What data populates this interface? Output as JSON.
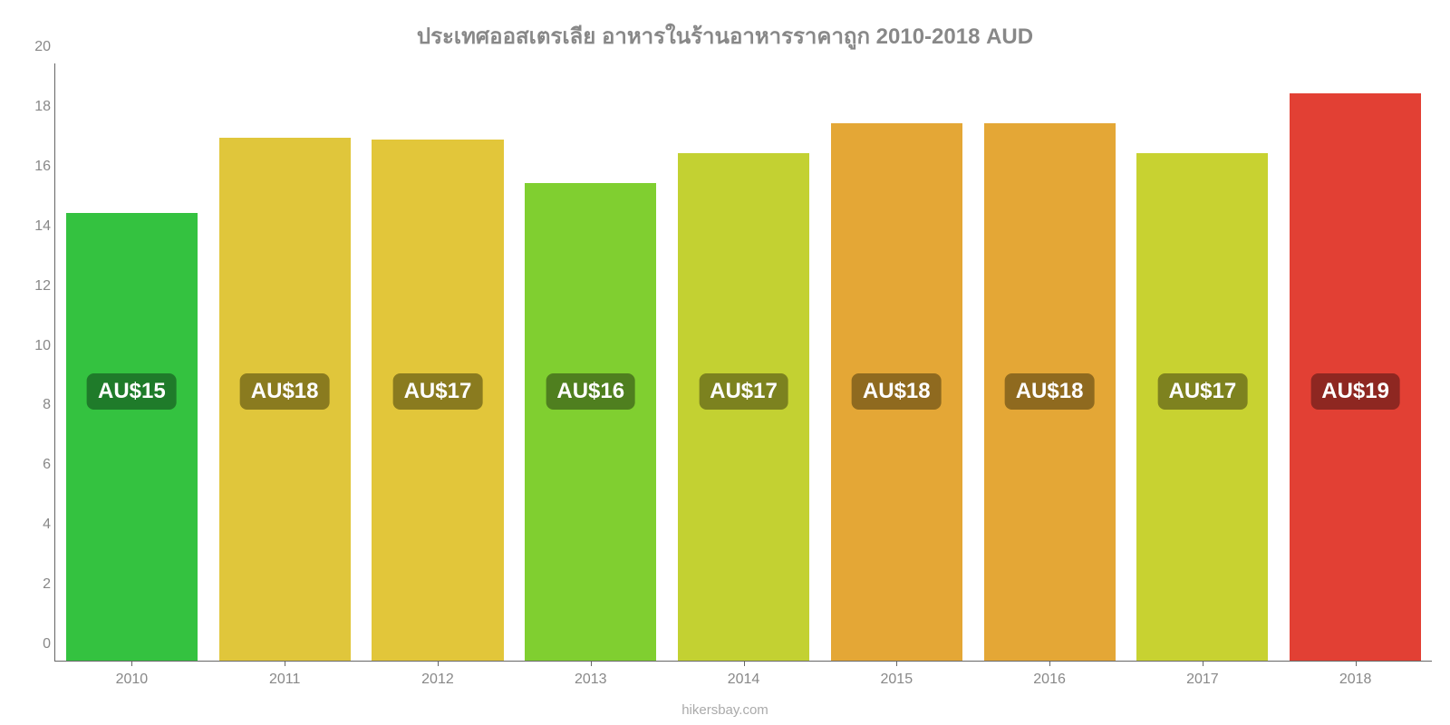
{
  "chart": {
    "type": "bar",
    "title": "ประเทศออสเตรเลีย อาหารในร้านอาหารราคาถูก 2010-2018 AUD",
    "title_fontsize": 24,
    "title_color": "#888888",
    "background_color": "#ffffff",
    "axis_color": "#666666",
    "tick_label_color": "#888888",
    "tick_fontsize": 16,
    "bar_width_pct": 86,
    "ylim": [
      0,
      20
    ],
    "yticks": [
      0,
      2,
      4,
      6,
      8,
      10,
      12,
      14,
      16,
      18,
      20
    ],
    "categories": [
      "2010",
      "2011",
      "2012",
      "2013",
      "2014",
      "2015",
      "2016",
      "2017",
      "2018"
    ],
    "values": [
      15.0,
      17.5,
      17.45,
      16.0,
      17.0,
      18.0,
      18.0,
      17.0,
      19.0
    ],
    "bar_colors": [
      "#34c240",
      "#e0c63b",
      "#e2c63a",
      "#80cf30",
      "#c3d132",
      "#e4a736",
      "#e4a736",
      "#c8d231",
      "#e24034"
    ],
    "bar_label_text": [
      "AU$15",
      "AU$18",
      "AU$17",
      "AU$16",
      "AU$17",
      "AU$18",
      "AU$18",
      "AU$17",
      "AU$19"
    ],
    "bar_label_bg": [
      "#1f7b2a",
      "#8a7b1f",
      "#8a7b1f",
      "#4f7f1f",
      "#7c821f",
      "#8f6a1f",
      "#8f6a1f",
      "#7e821f",
      "#8e2721"
    ],
    "bar_label_fontsize": 24,
    "bar_label_color": "#ffffff",
    "bar_label_center_value": 9,
    "source": "hikersbay.com",
    "source_color": "#aaaaaa",
    "source_fontsize": 15
  }
}
